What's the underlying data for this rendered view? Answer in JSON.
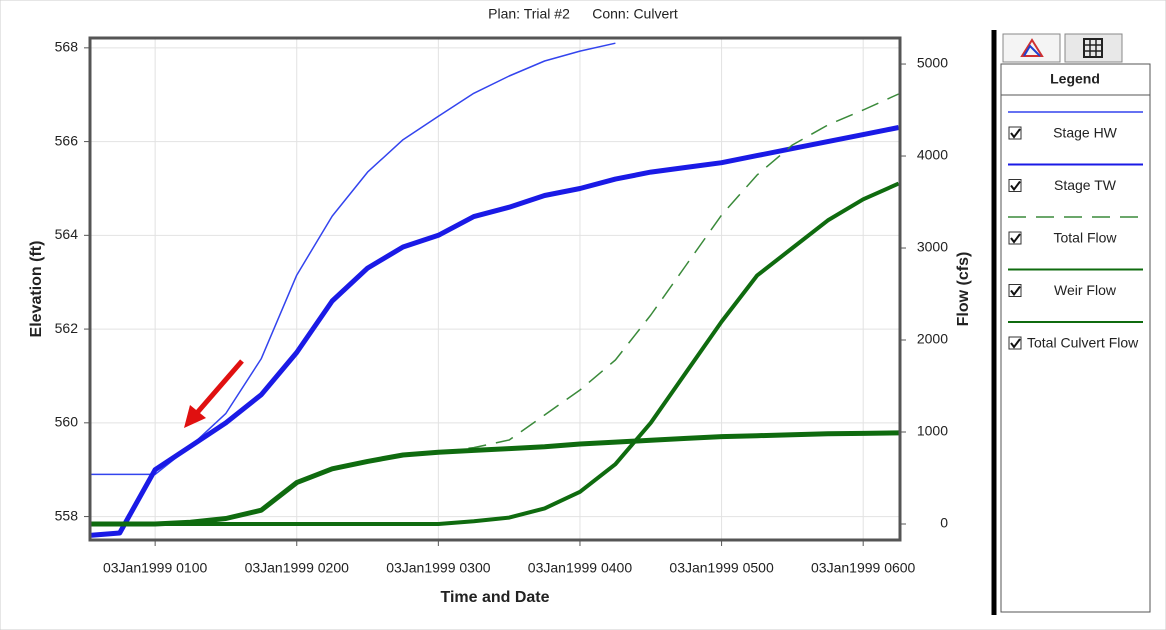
{
  "chart_data": {
    "type": "line",
    "title_plan": "Plan: Trial #2",
    "title_conn": "Conn: Culvert",
    "x_label": "Time and Date",
    "y_label": "Elevation (ft)",
    "y2_label": "Flow (cfs)",
    "legend_title": "Legend",
    "grid": true,
    "x": [
      0.55,
      0.75,
      1,
      1.25,
      1.5,
      1.75,
      2,
      2.25,
      2.5,
      2.75,
      3,
      3.25,
      3.5,
      3.75,
      4,
      4.25,
      4.5,
      4.75,
      5,
      5.25,
      5.5,
      5.75,
      6,
      6.25
    ],
    "xlim": [
      0.54,
      6.26
    ],
    "xticks": [
      {
        "value": 1,
        "label": "03Jan1999 0100"
      },
      {
        "value": 2,
        "label": "03Jan1999 0200"
      },
      {
        "value": 3,
        "label": "03Jan1999 0300"
      },
      {
        "value": 4,
        "label": "03Jan1999 0400"
      },
      {
        "value": 5,
        "label": "03Jan1999 0500"
      },
      {
        "value": 6,
        "label": "03Jan1999 0600"
      }
    ],
    "ylim": [
      557.5,
      568.21
    ],
    "yticks": [
      558,
      560,
      562,
      564,
      566,
      568
    ],
    "y2lim": [
      -174,
      5283
    ],
    "y2ticks": [
      0,
      1000,
      2000,
      3000,
      4000,
      5000
    ],
    "series": [
      {
        "name": "Stage HW",
        "color": "#3344ee",
        "width": 1.5,
        "dash": "solid",
        "axis": "y",
        "values": [
          558.9,
          558.9,
          558.9,
          559.5,
          560.2,
          561.37,
          563.15,
          564.41,
          565.35,
          566.04,
          566.54,
          567.03,
          567.4,
          567.72,
          567.93,
          568.1,
          null,
          null,
          null,
          null,
          null,
          null,
          null,
          null
        ]
      },
      {
        "name": "Stage TW",
        "color": "#1a1ae6",
        "width": 5,
        "dash": "solid",
        "axis": "y",
        "values": [
          557.6,
          557.65,
          559.0,
          559.5,
          560.0,
          560.6,
          561.5,
          562.6,
          563.3,
          563.75,
          564.0,
          564.4,
          564.6,
          564.85,
          565.0,
          565.2,
          565.35,
          565.45,
          565.55,
          565.7,
          565.85,
          566.0,
          566.15,
          566.3
        ]
      },
      {
        "name": "Total Flow",
        "color": "#3a8a3a",
        "width": 1.5,
        "dash": "dashed",
        "axis": "y2",
        "values": [
          0,
          0,
          0,
          20,
          60,
          150,
          450,
          600,
          680,
          750,
          780,
          830,
          913,
          1185,
          1457,
          1783,
          2272,
          2815,
          3359,
          3793,
          4120,
          4337,
          4500,
          4674
        ]
      },
      {
        "name": "Weir Flow",
        "color": "#0f6b0f",
        "width": 4,
        "dash": "solid",
        "axis": "y2",
        "values": [
          0,
          0,
          0,
          0,
          0,
          0,
          0,
          0,
          0,
          0,
          0,
          30,
          70,
          170,
          350,
          650,
          1100,
          1650,
          2200,
          2700,
          3000,
          3300,
          3530,
          3700
        ]
      },
      {
        "name": "Total Culvert Flow",
        "color": "#0f6b0f",
        "width": 5,
        "dash": "solid",
        "axis": "y2",
        "values": [
          0,
          0,
          0,
          20,
          60,
          150,
          450,
          600,
          680,
          750,
          780,
          800,
          820,
          840,
          870,
          890,
          910,
          930,
          950,
          960,
          970,
          980,
          985,
          990
        ]
      }
    ]
  }
}
